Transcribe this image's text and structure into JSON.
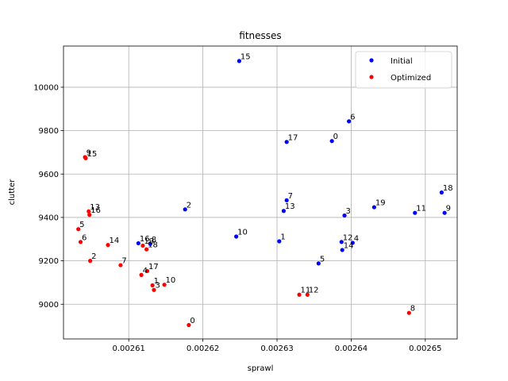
{
  "chart_data": {
    "type": "scatter",
    "title": "fitnesses",
    "xlabel": "sprawl",
    "ylabel": "clutter",
    "xlim": [
      0.0026012,
      0.0026543
    ],
    "ylim": [
      8840,
      10190
    ],
    "xticks": [
      0.00261,
      0.00262,
      0.00263,
      0.00264,
      0.00265
    ],
    "xtick_labels": [
      "0.00261",
      "0.00262",
      "0.00263",
      "0.00264",
      "0.00265"
    ],
    "yticks": [
      9000,
      9200,
      9400,
      9600,
      9800,
      10000
    ],
    "ytick_labels": [
      "9000",
      "9200",
      "9400",
      "9600",
      "9800",
      "10000"
    ],
    "grid": true,
    "legend_position": "top-right",
    "series": [
      {
        "name": "Initial",
        "color": "#0000ff",
        "points": [
          {
            "label": "0",
            "x": 0.0026374,
            "y": 9752
          },
          {
            "label": "1",
            "x": 0.0026303,
            "y": 9290
          },
          {
            "label": "2",
            "x": 0.0026176,
            "y": 9437
          },
          {
            "label": "3",
            "x": 0.0026391,
            "y": 9409
          },
          {
            "label": "4",
            "x": 0.0026402,
            "y": 9283
          },
          {
            "label": "5",
            "x": 0.0026356,
            "y": 9188
          },
          {
            "label": "6",
            "x": 0.0026397,
            "y": 9843
          },
          {
            "label": "7",
            "x": 0.0026313,
            "y": 9479
          },
          {
            "label": "8",
            "x": 0.0026129,
            "y": 9278
          },
          {
            "label": "9",
            "x": 0.0026526,
            "y": 9421
          },
          {
            "label": "10",
            "x": 0.0026245,
            "y": 9312
          },
          {
            "label": "11",
            "x": 0.0026486,
            "y": 9421
          },
          {
            "label": "12",
            "x": 0.0026387,
            "y": 9287
          },
          {
            "label": "13",
            "x": 0.0026309,
            "y": 9430
          },
          {
            "label": "14",
            "x": 0.0026388,
            "y": 9250
          },
          {
            "label": "15",
            "x": 0.0026249,
            "y": 10121
          },
          {
            "label": "16",
            "x": 0.0026113,
            "y": 9281
          },
          {
            "label": "17",
            "x": 0.0026313,
            "y": 9748
          },
          {
            "label": "18",
            "x": 0.0026522,
            "y": 9515
          },
          {
            "label": "19",
            "x": 0.0026431,
            "y": 9447
          }
        ]
      },
      {
        "name": "Optimized",
        "color": "#ff0000",
        "points": [
          {
            "label": "0",
            "x": 0.0026181,
            "y": 8904
          },
          {
            "label": "1",
            "x": 0.0026132,
            "y": 9087
          },
          {
            "label": "2",
            "x": 0.0026048,
            "y": 9200
          },
          {
            "label": "3",
            "x": 0.0026134,
            "y": 9066
          },
          {
            "label": "4",
            "x": 0.0026117,
            "y": 9135
          },
          {
            "label": "5",
            "x": 0.0026032,
            "y": 9346
          },
          {
            "label": "6",
            "x": 0.0026035,
            "y": 9287
          },
          {
            "label": "7",
            "x": 0.0026089,
            "y": 9180
          },
          {
            "label": "8",
            "x": 0.0026478,
            "y": 8960
          },
          {
            "label": "9",
            "x": 0.0026041,
            "y": 9678
          },
          {
            "label": "10",
            "x": 0.0026148,
            "y": 9090
          },
          {
            "label": "11",
            "x": 0.002633,
            "y": 9044
          },
          {
            "label": "12",
            "x": 0.0026341,
            "y": 9044
          },
          {
            "label": "13",
            "x": 0.0026046,
            "y": 9428
          },
          {
            "label": "14",
            "x": 0.0026072,
            "y": 9273
          },
          {
            "label": "15",
            "x": 0.0026042,
            "y": 9673
          },
          {
            "label": "16",
            "x": 0.0026047,
            "y": 9412
          },
          {
            "label": "17",
            "x": 0.0026125,
            "y": 9153
          },
          {
            "label": "18",
            "x": 0.0026124,
            "y": 9253
          },
          {
            "label": "19",
            "x": 0.0026119,
            "y": 9270
          }
        ]
      }
    ]
  }
}
